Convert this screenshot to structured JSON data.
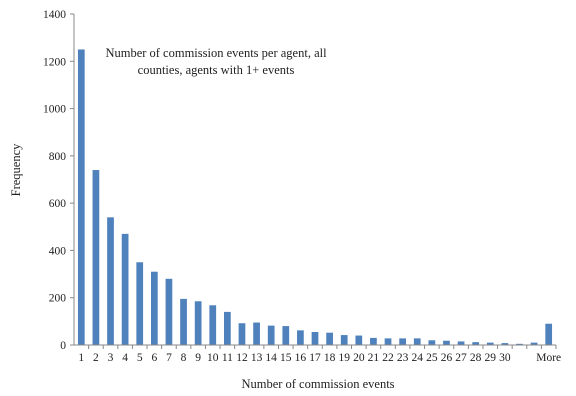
{
  "chart_data": {
    "type": "bar",
    "title": "",
    "annotation": {
      "lines": [
        "Number of commission events per agent, all",
        "counties, agents with 1+ events"
      ]
    },
    "xlabel": "Number of commission events",
    "ylabel": "Frequency",
    "ylim": [
      0,
      1400
    ],
    "yticks": [
      0,
      200,
      400,
      600,
      800,
      1000,
      1200,
      1400
    ],
    "grid": false,
    "legend": "none",
    "bar_color": "#4F81BD",
    "categories": [
      "1",
      "2",
      "3",
      "4",
      "5",
      "6",
      "7",
      "8",
      "9",
      "10",
      "11",
      "12",
      "13",
      "14",
      "15",
      "16",
      "17",
      "18",
      "19",
      "20",
      "21",
      "22",
      "23",
      "24",
      "25",
      "26",
      "27",
      "28",
      "29",
      "30",
      "",
      "",
      "More"
    ],
    "values": [
      1250,
      740,
      540,
      470,
      350,
      310,
      280,
      195,
      185,
      168,
      140,
      92,
      95,
      82,
      80,
      62,
      55,
      52,
      42,
      40,
      30,
      28,
      28,
      28,
      20,
      18,
      15,
      12,
      10,
      8,
      5,
      10,
      90
    ]
  }
}
